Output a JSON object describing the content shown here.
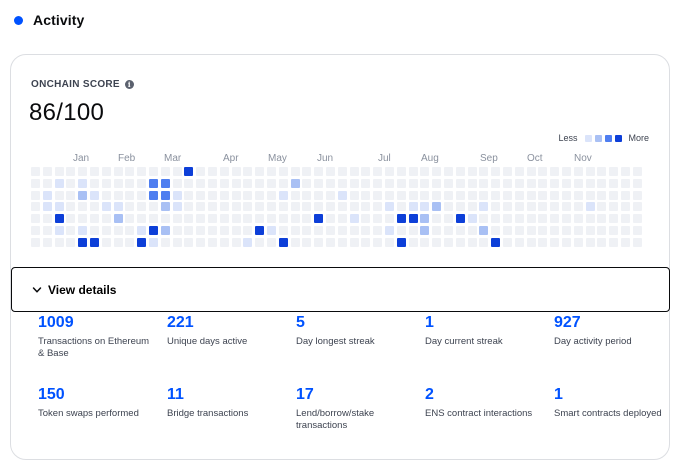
{
  "section": {
    "title": "Activity",
    "accent": "#0052ff"
  },
  "score": {
    "label": "ONCHAIN SCORE",
    "info_icon": "info-icon",
    "value": "86/100"
  },
  "legend": {
    "less": "Less",
    "more": "More",
    "colors": [
      "#eff1f5",
      "#dbe4fa",
      "#a9c0f4",
      "#4f7ef0",
      "#0d3fd8"
    ]
  },
  "months": [
    "Jan",
    "Feb",
    "Mar",
    "Apr",
    "May",
    "Jun",
    "Jul",
    "Aug",
    "Sep",
    "Oct",
    "Nov"
  ],
  "heatmap": {
    "weeks": 52,
    "days": 7,
    "levels": [
      [
        0,
        0,
        0,
        0,
        0,
        0,
        0
      ],
      [
        0,
        0,
        1,
        1,
        0,
        0,
        0
      ],
      [
        0,
        1,
        0,
        1,
        4,
        1,
        0
      ],
      [
        0,
        0,
        0,
        0,
        0,
        0,
        0
      ],
      [
        0,
        1,
        2,
        0,
        0,
        1,
        4
      ],
      [
        0,
        0,
        1,
        0,
        0,
        0,
        4
      ],
      [
        0,
        0,
        0,
        1,
        0,
        0,
        0
      ],
      [
        0,
        0,
        0,
        1,
        2,
        0,
        0
      ],
      [
        0,
        0,
        0,
        0,
        0,
        0,
        0
      ],
      [
        0,
        0,
        0,
        0,
        0,
        1,
        4
      ],
      [
        0,
        3,
        3,
        0,
        0,
        4,
        1
      ],
      [
        0,
        3,
        3,
        2,
        0,
        2,
        0
      ],
      [
        0,
        0,
        1,
        1,
        0,
        0,
        0
      ],
      [
        4,
        0,
        0,
        0,
        0,
        0,
        0
      ],
      [
        0,
        0,
        0,
        0,
        0,
        0,
        0
      ],
      [
        0,
        0,
        0,
        0,
        0,
        0,
        0
      ],
      [
        0,
        0,
        0,
        0,
        0,
        0,
        0
      ],
      [
        0,
        0,
        0,
        0,
        0,
        0,
        0
      ],
      [
        0,
        0,
        0,
        0,
        0,
        0,
        1
      ],
      [
        0,
        0,
        0,
        0,
        0,
        4,
        0
      ],
      [
        0,
        0,
        0,
        0,
        0,
        1,
        0
      ],
      [
        0,
        0,
        1,
        0,
        0,
        0,
        4
      ],
      [
        0,
        2,
        0,
        0,
        0,
        0,
        0
      ],
      [
        0,
        0,
        0,
        0,
        0,
        0,
        0
      ],
      [
        0,
        0,
        0,
        0,
        4,
        0,
        0
      ],
      [
        0,
        0,
        0,
        0,
        0,
        0,
        0
      ],
      [
        0,
        0,
        1,
        0,
        0,
        0,
        0
      ],
      [
        0,
        0,
        0,
        0,
        1,
        0,
        0
      ],
      [
        0,
        0,
        0,
        0,
        0,
        0,
        0
      ],
      [
        0,
        0,
        0,
        0,
        0,
        0,
        0
      ],
      [
        0,
        0,
        0,
        1,
        0,
        1,
        0
      ],
      [
        0,
        0,
        0,
        0,
        4,
        0,
        4
      ],
      [
        0,
        0,
        0,
        1,
        4,
        0,
        0
      ],
      [
        0,
        0,
        0,
        1,
        2,
        2,
        0
      ],
      [
        0,
        0,
        0,
        2,
        0,
        0,
        0
      ],
      [
        0,
        0,
        0,
        0,
        0,
        0,
        0
      ],
      [
        0,
        0,
        0,
        0,
        4,
        0,
        0
      ],
      [
        0,
        0,
        0,
        0,
        1,
        0,
        0
      ],
      [
        0,
        0,
        0,
        1,
        0,
        2,
        0
      ],
      [
        0,
        0,
        0,
        0,
        0,
        0,
        4
      ],
      [
        0,
        0,
        0,
        0,
        0,
        0,
        0
      ],
      [
        0,
        0,
        0,
        0,
        0,
        0,
        0
      ],
      [
        0,
        0,
        0,
        0,
        0,
        0,
        0
      ],
      [
        0,
        0,
        0,
        0,
        0,
        0,
        0
      ],
      [
        0,
        0,
        0,
        0,
        0,
        0,
        0
      ],
      [
        0,
        0,
        0,
        0,
        0,
        0,
        0
      ],
      [
        0,
        0,
        0,
        0,
        0,
        0,
        0
      ],
      [
        0,
        0,
        0,
        1,
        0,
        0,
        0
      ],
      [
        0,
        0,
        0,
        0,
        0,
        0,
        0
      ],
      [
        0,
        0,
        0,
        0,
        0,
        0,
        0
      ],
      [
        0,
        0,
        0,
        0,
        0,
        0,
        0
      ],
      [
        0,
        0,
        0,
        0,
        0,
        0,
        0
      ]
    ]
  },
  "details_button": {
    "label": "View details",
    "icon": "chevron-down-icon"
  },
  "stats": [
    {
      "value": "1009",
      "label": "Transactions on Ethereum & Base"
    },
    {
      "value": "221",
      "label": "Unique days active"
    },
    {
      "value": "5",
      "label": "Day longest streak"
    },
    {
      "value": "1",
      "label": "Day current streak"
    },
    {
      "value": "927",
      "label": "Day activity period"
    },
    {
      "value": "150",
      "label": "Token swaps performed"
    },
    {
      "value": "11",
      "label": "Bridge transactions"
    },
    {
      "value": "17",
      "label": "Lend/borrow/stake transactions"
    },
    {
      "value": "2",
      "label": "ENS contract interactions"
    },
    {
      "value": "1",
      "label": "Smart contracts deployed"
    }
  ]
}
